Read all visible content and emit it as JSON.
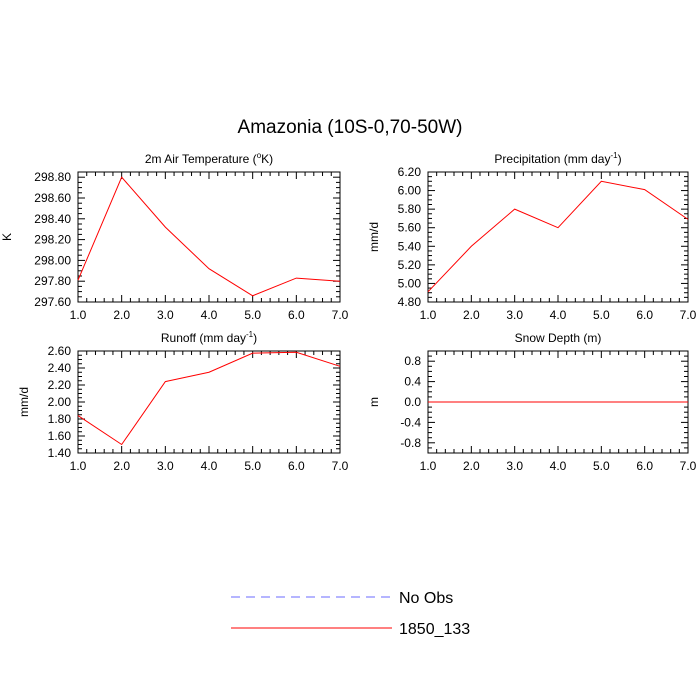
{
  "figure_title": "Amazonia (10S-0,70-50W)",
  "chart_data": [
    {
      "type": "line",
      "title": "2m Air Temperature (°K)",
      "title_parts": {
        "pre": "2m Air Temperature (",
        "sup": "o",
        "post": "K)"
      },
      "ylabel": "K",
      "xlabel": "",
      "x": [
        1,
        2,
        3,
        4,
        5,
        6,
        7
      ],
      "xlim": [
        1,
        7
      ],
      "ylim": [
        297.6,
        298.85
      ],
      "yticks": [
        297.6,
        297.8,
        298.0,
        298.2,
        298.4,
        298.6,
        298.8
      ],
      "xtick_labels": [
        "1.0",
        "2.0",
        "3.0",
        "4.0",
        "5.0",
        "6.0",
        "7.0"
      ],
      "ytick_labels": [
        "297.60",
        "297.80",
        "298.00",
        "298.20",
        "298.40",
        "298.60",
        "298.80"
      ],
      "series": [
        {
          "name": "1850_133",
          "values": [
            297.81,
            298.8,
            298.32,
            297.92,
            297.66,
            297.83,
            297.8
          ]
        }
      ]
    },
    {
      "type": "line",
      "title": "Precipitation (mm day-1)",
      "title_parts": {
        "pre": "Precipitation (mm day",
        "sup": "-1",
        "post": ")"
      },
      "ylabel": "mm/d",
      "xlabel": "",
      "x": [
        1,
        2,
        3,
        4,
        5,
        6,
        7
      ],
      "xlim": [
        1,
        7
      ],
      "ylim": [
        4.8,
        6.2
      ],
      "yticks": [
        4.8,
        5.0,
        5.2,
        5.4,
        5.6,
        5.8,
        6.0,
        6.2
      ],
      "xtick_labels": [
        "1.0",
        "2.0",
        "3.0",
        "4.0",
        "5.0",
        "6.0",
        "7.0"
      ],
      "ytick_labels": [
        "4.80",
        "5.00",
        "5.20",
        "5.40",
        "5.60",
        "5.80",
        "6.00",
        "6.20"
      ],
      "series": [
        {
          "name": "1850_133",
          "values": [
            4.91,
            5.4,
            5.8,
            5.6,
            6.1,
            6.01,
            5.69
          ]
        }
      ]
    },
    {
      "type": "line",
      "title": "Runoff (mm day-1)",
      "title_parts": {
        "pre": "Runoff (mm day",
        "sup": "-1",
        "post": ")"
      },
      "ylabel": "mm/d",
      "xlabel": "",
      "x": [
        1,
        2,
        3,
        4,
        5,
        6,
        7
      ],
      "xlim": [
        1,
        7
      ],
      "ylim": [
        1.4,
        2.6
      ],
      "yticks": [
        1.4,
        1.6,
        1.8,
        2.0,
        2.2,
        2.4,
        2.6
      ],
      "xtick_labels": [
        "1.0",
        "2.0",
        "3.0",
        "4.0",
        "5.0",
        "6.0",
        "7.0"
      ],
      "ytick_labels": [
        "1.40",
        "1.60",
        "1.80",
        "2.00",
        "2.20",
        "2.40",
        "2.60"
      ],
      "series": [
        {
          "name": "1850_133",
          "values": [
            1.84,
            1.5,
            2.24,
            2.35,
            2.575,
            2.585,
            2.42
          ]
        }
      ]
    },
    {
      "type": "line",
      "title": "Snow Depth (m)",
      "title_parts": {
        "pre": "Snow Depth (m)",
        "sup": "",
        "post": ""
      },
      "ylabel": "m",
      "xlabel": "",
      "x": [
        1,
        2,
        3,
        4,
        5,
        6,
        7
      ],
      "xlim": [
        1,
        7
      ],
      "ylim": [
        -1.0,
        1.0
      ],
      "yticks": [
        -0.8,
        -0.4,
        0.0,
        0.4,
        0.8
      ],
      "xtick_labels": [
        "1.0",
        "2.0",
        "3.0",
        "4.0",
        "5.0",
        "6.0",
        "7.0"
      ],
      "ytick_labels": [
        "-0.8",
        "-0.4",
        "0.0",
        "0.4",
        "0.8"
      ],
      "series": [
        {
          "name": "1850_133",
          "values": [
            0,
            0,
            0,
            0,
            0,
            0,
            0
          ]
        }
      ]
    }
  ],
  "legend": {
    "placement": "bottom-center",
    "entries": [
      {
        "label": "No Obs",
        "color": "#6b6bff",
        "style": "dashed"
      },
      {
        "label": "1850_133",
        "color": "#ff0000",
        "style": "solid"
      }
    ]
  },
  "colors": {
    "series": "#ff0000",
    "obs": "#6b6bff",
    "axis": "#000000"
  }
}
